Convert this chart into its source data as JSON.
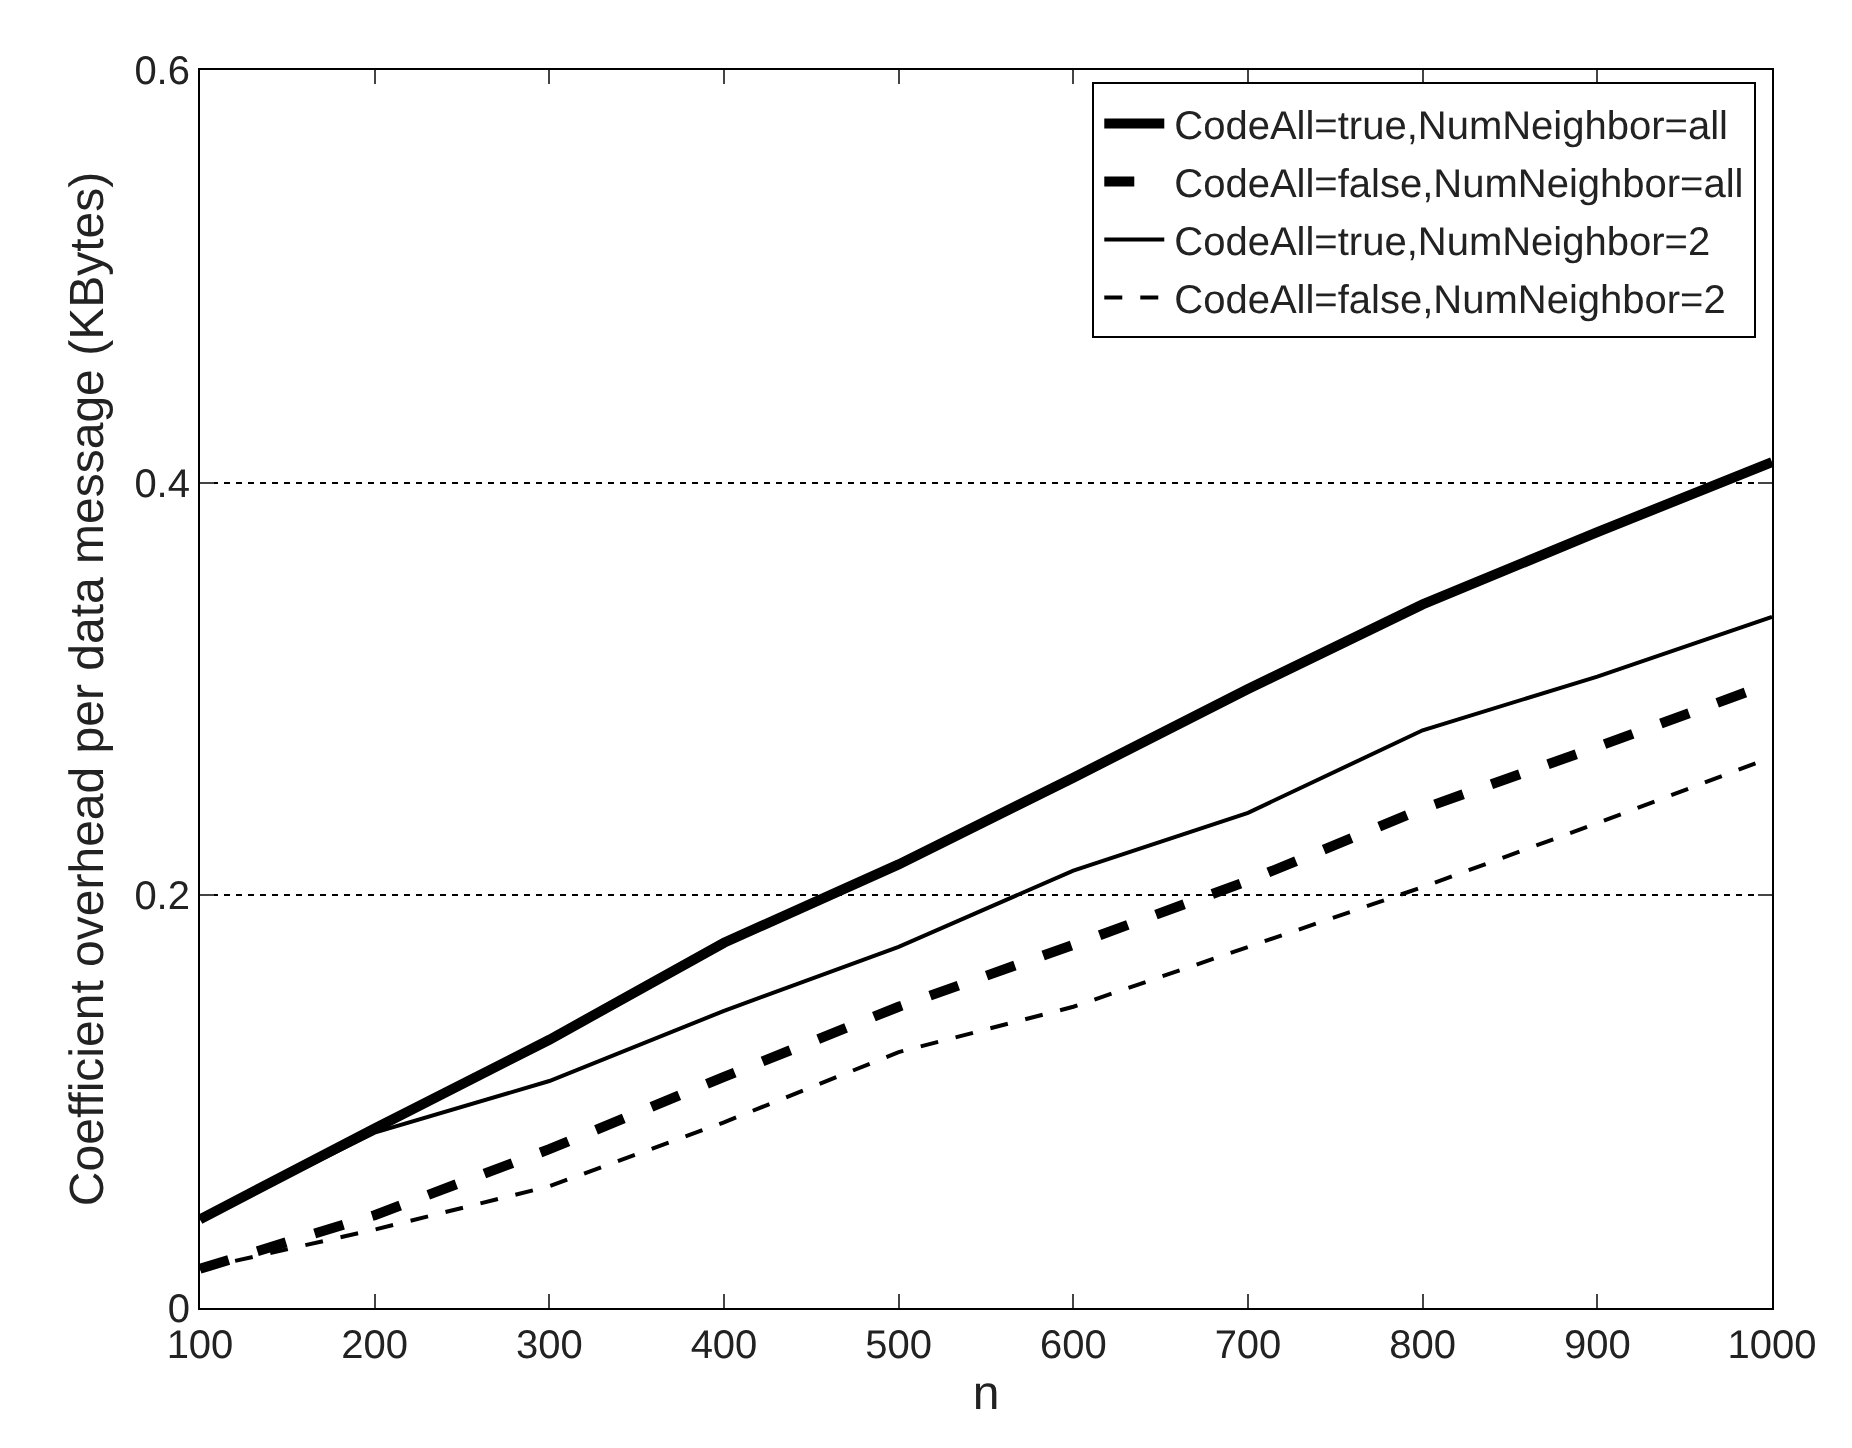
{
  "chart_data": {
    "type": "line",
    "xlabel": "n",
    "ylabel": "Coefficient overhead per data message (KBytes)",
    "x": [
      100,
      200,
      300,
      400,
      500,
      600,
      700,
      800,
      900,
      1000
    ],
    "series": [
      {
        "name": "CodeAll=true,NumNeighbor=all",
        "color": "#000000",
        "line_style": "solid",
        "values": [
          0.043,
          0.087,
          0.13,
          0.177,
          0.215,
          0.257,
          0.3,
          0.341,
          0.376,
          0.41
        ]
      },
      {
        "name": "CodeAll=false,NumNeighbor=all",
        "color": "#000000",
        "line_style": "dashed",
        "values": [
          0.019,
          0.045,
          0.077,
          0.112,
          0.146,
          0.176,
          0.207,
          0.242,
          0.272,
          0.303
        ]
      },
      {
        "name": "CodeAll=true,NumNeighbor=2",
        "color": "#000000",
        "line_style": "solid",
        "values": [
          0.043,
          0.085,
          0.11,
          0.144,
          0.175,
          0.212,
          0.24,
          0.28,
          0.306,
          0.335
        ]
      },
      {
        "name": "CodeAll=false,NumNeighbor=2",
        "color": "#000000",
        "line_style": "dashed",
        "values": [
          0.019,
          0.038,
          0.059,
          0.09,
          0.124,
          0.146,
          0.175,
          0.204,
          0.235,
          0.267
        ]
      }
    ],
    "xlim": [
      100,
      1000
    ],
    "xticks": [
      100,
      200,
      300,
      400,
      500,
      600,
      700,
      800,
      900,
      1000
    ],
    "ylim": [
      0,
      0.6
    ],
    "yticks": [
      0,
      0.2,
      0.4,
      0.6
    ],
    "grid": "y",
    "legend": "top right",
    "marker": "none"
  }
}
